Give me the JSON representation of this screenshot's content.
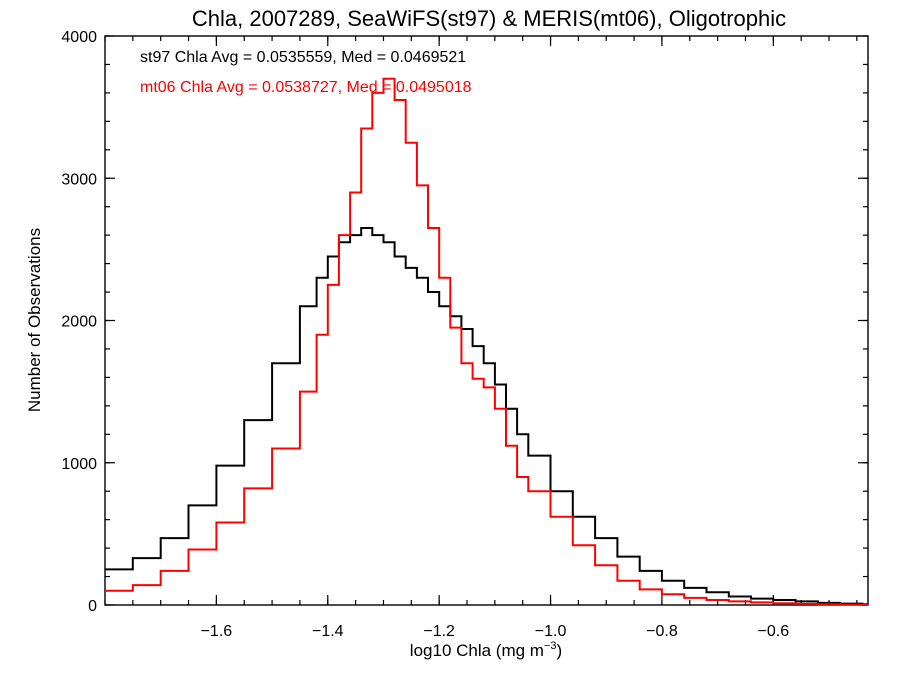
{
  "chart_data": {
    "type": "line",
    "title": "Chla, 2007289, SeaWiFS(st97) & MERIS(mt06), Oligotrophic",
    "xlabel_main": "log10 Chla (mg m",
    "xlabel_sup": "−3",
    "xlabel_close": ")",
    "ylabel": "Number of Observations",
    "xlim": [
      -1.8,
      -0.43
    ],
    "ylim": [
      0,
      4000
    ],
    "x_ticks": [
      {
        "value": -1.6,
        "label": "−1.6"
      },
      {
        "value": -1.4,
        "label": "−1.4"
      },
      {
        "value": -1.2,
        "label": "−1.2"
      },
      {
        "value": -1.0,
        "label": "−1.0"
      },
      {
        "value": -0.8,
        "label": "−0.8"
      },
      {
        "value": -0.6,
        "label": "−0.6"
      }
    ],
    "x_minor_step": 0.05,
    "y_ticks": [
      {
        "value": 0,
        "label": "0"
      },
      {
        "value": 1000,
        "label": "1000"
      },
      {
        "value": 2000,
        "label": "2000"
      },
      {
        "value": 3000,
        "label": "3000"
      },
      {
        "value": 4000,
        "label": "4000"
      }
    ],
    "y_minor_step": 200,
    "grid": false,
    "annotations": [
      {
        "text": "st97 Chla Avg = 0.0535559, Med = 0.0469521",
        "color": "#000000"
      },
      {
        "text": "mt06 Chla Avg = 0.0538727, Med = 0.0495018",
        "color": "#ff0000"
      }
    ],
    "series": [
      {
        "color": "#000000",
        "step": "post",
        "x": [
          -1.8,
          -1.75,
          -1.7,
          -1.65,
          -1.6,
          -1.55,
          -1.5,
          -1.45,
          -1.42,
          -1.4,
          -1.38,
          -1.36,
          -1.34,
          -1.32,
          -1.3,
          -1.28,
          -1.26,
          -1.24,
          -1.22,
          -1.2,
          -1.18,
          -1.16,
          -1.14,
          -1.12,
          -1.1,
          -1.08,
          -1.06,
          -1.04,
          -1.0,
          -0.96,
          -0.92,
          -0.88,
          -0.84,
          -0.8,
          -0.76,
          -0.72,
          -0.68,
          -0.64,
          -0.6,
          -0.56,
          -0.52,
          -0.48,
          -0.44
        ],
        "y": [
          250,
          330,
          470,
          700,
          980,
          1300,
          1700,
          2100,
          2300,
          2450,
          2550,
          2600,
          2650,
          2600,
          2550,
          2450,
          2370,
          2300,
          2200,
          2100,
          2030,
          1940,
          1820,
          1700,
          1550,
          1380,
          1200,
          1050,
          800,
          620,
          470,
          340,
          240,
          170,
          120,
          90,
          60,
          45,
          35,
          25,
          15,
          10,
          5
        ]
      },
      {
        "color": "#ff0000",
        "step": "post",
        "x": [
          -1.8,
          -1.75,
          -1.7,
          -1.65,
          -1.6,
          -1.55,
          -1.5,
          -1.45,
          -1.42,
          -1.4,
          -1.38,
          -1.36,
          -1.34,
          -1.32,
          -1.3,
          -1.28,
          -1.26,
          -1.24,
          -1.22,
          -1.2,
          -1.18,
          -1.16,
          -1.14,
          -1.12,
          -1.1,
          -1.08,
          -1.06,
          -1.04,
          -1.0,
          -0.96,
          -0.92,
          -0.88,
          -0.84,
          -0.8,
          -0.76,
          -0.72,
          -0.68,
          -0.64,
          -0.6,
          -0.56,
          -0.52,
          -0.48,
          -0.44
        ],
        "y": [
          100,
          140,
          240,
          390,
          580,
          820,
          1100,
          1500,
          1900,
          2250,
          2600,
          2900,
          3350,
          3600,
          3700,
          3550,
          3250,
          2950,
          2650,
          2300,
          1950,
          1700,
          1590,
          1530,
          1380,
          1120,
          900,
          800,
          620,
          420,
          280,
          170,
          110,
          75,
          50,
          35,
          25,
          18,
          12,
          8,
          5,
          3,
          2
        ]
      }
    ]
  }
}
